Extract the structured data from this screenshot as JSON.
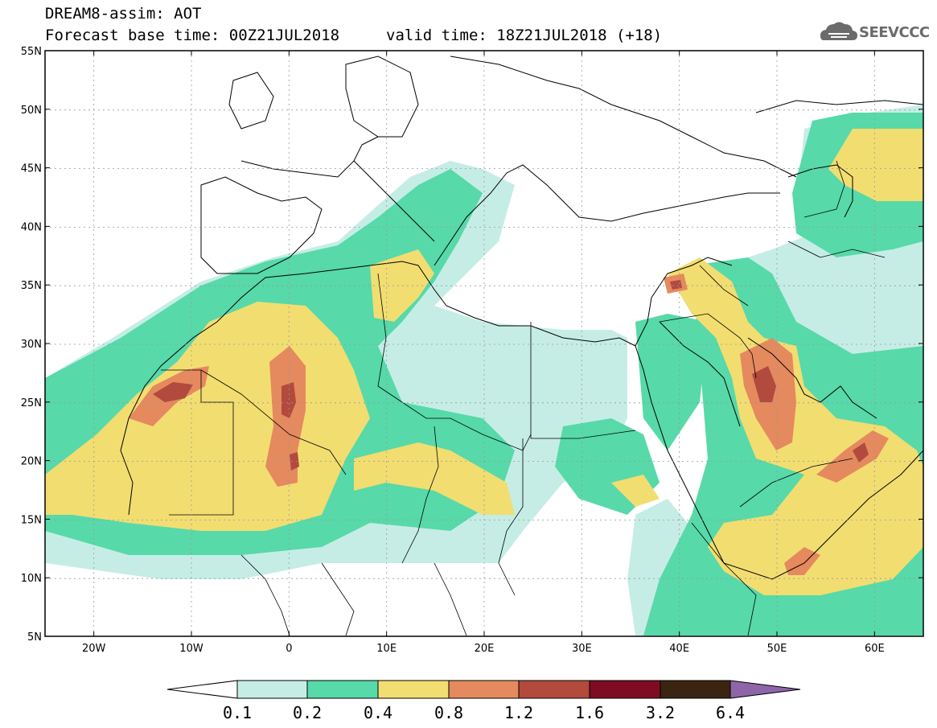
{
  "header": {
    "title": "DREAM8-assim: AOT",
    "forecast_base": "Forecast base time: 00Z21JUL2018",
    "valid_time": "valid time: 18Z21JUL2018 (+18)",
    "logo_text": "SEEVCCC"
  },
  "map": {
    "projection": "lat-lon",
    "lon_range": [
      -25,
      65
    ],
    "lat_range": [
      5,
      55
    ],
    "lat_labels": [
      "55N",
      "50N",
      "45N",
      "40N",
      "35N",
      "30N",
      "25N",
      "20N",
      "15N",
      "10N",
      "5N"
    ],
    "lat_values": [
      55,
      50,
      45,
      40,
      35,
      30,
      25,
      20,
      15,
      10,
      5
    ],
    "lon_labels": [
      "20W",
      "10W",
      "0",
      "10E",
      "20E",
      "30E",
      "40E",
      "50E",
      "60E"
    ],
    "lon_values": [
      -20,
      -10,
      0,
      10,
      20,
      30,
      40,
      50,
      60
    ],
    "grid": "dotted"
  },
  "colorbar": {
    "ticks": [
      "0.1",
      "0.2",
      "0.4",
      "0.8",
      "1.2",
      "1.6",
      "3.2",
      "6.4"
    ],
    "colors": {
      "under": "#ffffff",
      "c1": "#c5ede6",
      "c2": "#57d9a9",
      "c3": "#f2dd71",
      "c4": "#e5895f",
      "c5": "#b24a3d",
      "c6": "#7e0d23",
      "c7": "#3b2412",
      "over": "#8d65a8"
    }
  }
}
